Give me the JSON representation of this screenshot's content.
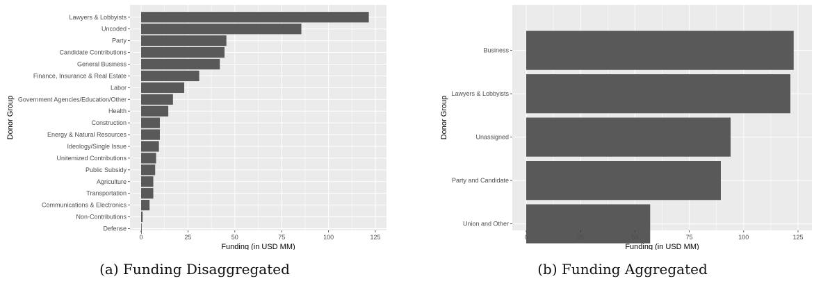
{
  "colors": {
    "panel_background": "#ebebeb",
    "gridline": "#ffffff",
    "bar_fill": "#595959",
    "tick_text": "#4d4d4d",
    "axis_title_text": "#000000"
  },
  "chart_data": [
    {
      "type": "bar",
      "orientation": "horizontal",
      "caption": "(a) Funding Disaggregated",
      "xlabel": "Funding (in USD MM)",
      "ylabel": "Donor Group",
      "xlim": [
        0,
        125
      ],
      "xticks": [
        0,
        25,
        50,
        75,
        100,
        125
      ],
      "grid": true,
      "categories": [
        "Lawyers & Lobbyists",
        "Uncoded",
        "Party",
        "Candidate Contributions",
        "General Business",
        "Finance, Insurance & Real Estate",
        "Labor",
        "Government Agencies/Education/Other",
        "Health",
        "Construction",
        "Energy & Natural Resources",
        "Ideology/Single Issue",
        "Unitemized Contributions",
        "Public Subsidy",
        "Agriculture",
        "Transportation",
        "Communications & Electronics",
        "Non-Contributions",
        "Defense"
      ],
      "values": [
        121.5,
        85.5,
        45.5,
        44.5,
        42,
        31,
        23,
        17,
        14.5,
        10,
        10,
        9.5,
        8,
        7.5,
        6.5,
        6.5,
        4.5,
        0.8,
        0.3
      ]
    },
    {
      "type": "bar",
      "orientation": "horizontal",
      "caption": "(b) Funding Aggregated",
      "xlabel": "Funding (in USD MM)",
      "ylabel": "Donor Group",
      "xlim": [
        0,
        125
      ],
      "xticks": [
        0,
        25,
        50,
        75,
        100,
        125
      ],
      "grid": true,
      "categories": [
        "Business",
        "Lawyers & Lobbyists",
        "Unassigned",
        "Party and Candidate",
        "Union and Other"
      ],
      "values": [
        123,
        121.5,
        94,
        89.5,
        57
      ]
    }
  ]
}
